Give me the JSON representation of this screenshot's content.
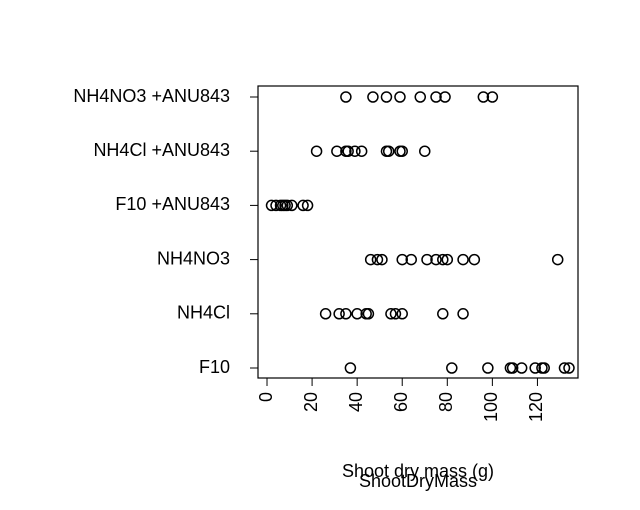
{
  "chart_data": {
    "type": "strip",
    "categories": [
      "F10",
      "NH4Cl",
      "NH4NO3",
      "F10 +ANU843",
      "NH4Cl +ANU843",
      "NH4NO3 +ANU843"
    ],
    "values": [
      [
        37,
        82,
        98,
        108,
        109,
        113,
        119,
        122,
        123,
        132,
        134
      ],
      [
        26,
        32,
        35,
        40,
        44,
        45,
        55,
        57,
        60,
        78,
        87
      ],
      [
        46,
        49,
        51,
        60,
        64,
        71,
        75,
        78,
        80,
        87,
        92,
        129
      ],
      [
        2,
        4,
        6,
        7,
        8,
        9,
        11,
        16,
        18
      ],
      [
        22,
        31,
        35,
        36,
        39,
        42,
        53,
        54,
        59,
        60,
        70
      ],
      [
        35,
        47,
        53,
        59,
        68,
        75,
        79,
        96,
        100
      ]
    ],
    "xlim": [
      -4,
      138
    ],
    "xticks": [
      0,
      20,
      40,
      60,
      80,
      100,
      120
    ],
    "axis_labels": [
      "Shoot dry mass (g)",
      "ShootDryMass"
    ],
    "color": "#000000"
  }
}
